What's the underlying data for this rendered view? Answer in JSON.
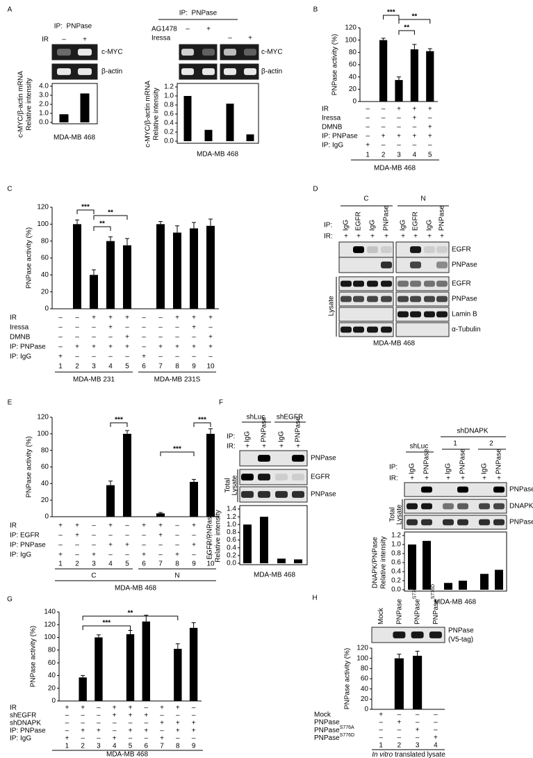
{
  "panels": {
    "a_left": {
      "letter": "A",
      "ip": "IP:  PNPase",
      "conditions": [
        {
          "label": "IR",
          "signs": [
            "–",
            "+"
          ]
        }
      ],
      "blots": [
        "c-MYC",
        "β-actin"
      ],
      "ylabel": [
        "c-MYC/β-actin mRNA",
        "Relative intensity"
      ],
      "ylim": [
        0,
        4
      ],
      "yticks": [
        {
          "value": 0,
          "label": "0.0"
        },
        {
          "value": 1,
          "label": "1.0"
        },
        {
          "value": 2,
          "label": "2.0"
        },
        {
          "value": 3,
          "label": "3.0"
        },
        {
          "value": 4,
          "label": "4.0"
        }
      ],
      "values": [
        0.9,
        3.2
      ],
      "cell_line": "MDA-MB 468"
    },
    "a_right": {
      "ip": "IP:  PNPase",
      "conditions": [
        {
          "label": "AG1478",
          "signs": [
            "–",
            "+",
            null,
            null
          ]
        },
        {
          "label": "Iressa",
          "signs": [
            null,
            null,
            "–",
            "+"
          ]
        }
      ],
      "blots": [
        "c-MYC",
        "β-actin"
      ],
      "ylabel": [
        "c-MYC/β-actin mRNA",
        "Relative intensity"
      ],
      "ylim": [
        0,
        1.2
      ],
      "yticks": [
        {
          "value": 0,
          "label": "0.0"
        },
        {
          "value": 0.2,
          "label": "0.2"
        },
        {
          "value": 0.4,
          "label": "0.4"
        },
        {
          "value": 0.6,
          "label": "0.6"
        },
        {
          "value": 0.8,
          "label": "0.8"
        },
        {
          "value": 1,
          "label": "1.0"
        },
        {
          "value": 1.2,
          "label": "1.2"
        }
      ],
      "values": [
        1.0,
        0.25,
        0.83,
        0.15
      ],
      "cell_line": "MDA-MB 468"
    },
    "b": {
      "letter": "B",
      "ylabel": "PNPase activity (%)",
      "ylim": [
        0,
        120
      ],
      "yticks": [
        0,
        20,
        40,
        60,
        80,
        100,
        120
      ],
      "values": [
        0,
        100,
        35,
        85,
        82
      ],
      "errors": [
        0,
        3,
        5,
        8,
        4
      ],
      "significance": [
        "***",
        "**",
        "**"
      ],
      "conditions": [
        {
          "label": "IR",
          "signs": [
            "–",
            "–",
            "+",
            "+",
            "+"
          ]
        },
        {
          "label": "Iressa",
          "signs": [
            "–",
            "–",
            "–",
            "+",
            "–"
          ]
        },
        {
          "label": "DMNB",
          "signs": [
            "–",
            "–",
            "–",
            "–",
            "+"
          ]
        },
        {
          "label": "IP: PNPase",
          "signs": [
            "–",
            "+",
            "+",
            "+",
            "+"
          ]
        },
        {
          "label": "IP: IgG",
          "signs": [
            "+",
            "–",
            "–",
            "–",
            "–"
          ]
        }
      ],
      "lanes": [
        1,
        2,
        3,
        4,
        5
      ],
      "cell_line": "MDA-MB 468"
    },
    "c": {
      "letter": "C",
      "ylabel": "PNPase activity (%)",
      "ylim": [
        0,
        120
      ],
      "yticks": [
        0,
        20,
        40,
        60,
        80,
        100,
        120
      ],
      "values": [
        0,
        100,
        40,
        80,
        75,
        0,
        100,
        90,
        95,
        98
      ],
      "errors": [
        0,
        5,
        6,
        5,
        8,
        0,
        3,
        8,
        7,
        8
      ],
      "significance": [
        "***",
        "**",
        "**"
      ],
      "conditions": [
        {
          "label": "IR",
          "signs": [
            "–",
            "–",
            "+",
            "+",
            "+",
            "–",
            "–",
            "+",
            "+",
            "+"
          ]
        },
        {
          "label": "Iressa",
          "signs": [
            "–",
            "–",
            "–",
            "+",
            "–",
            "–",
            "–",
            "–",
            "+",
            "–"
          ]
        },
        {
          "label": "DMNB",
          "signs": [
            "–",
            "–",
            "–",
            "–",
            "+",
            "–",
            "–",
            "–",
            "–",
            "+"
          ]
        },
        {
          "label": "IP: PNPase",
          "signs": [
            "–",
            "+",
            "+",
            "+",
            "+",
            "–",
            "+",
            "+",
            "+",
            "+"
          ]
        },
        {
          "label": "IP: IgG",
          "signs": [
            "+",
            "–",
            "–",
            "–",
            "–",
            "+",
            "–",
            "–",
            "–",
            "–"
          ]
        }
      ],
      "lanes": [
        1,
        2,
        3,
        4,
        5,
        6,
        7,
        8,
        9,
        10
      ],
      "groups": [
        "MDA-MB 231",
        "MDA-MB 231S"
      ]
    },
    "d": {
      "letter": "D",
      "groups": [
        "C",
        "N"
      ],
      "ip_label": "IP:",
      "ir_label": "IR:",
      "ip": [
        "IgG",
        "EGFR",
        "IgG",
        "PNPase",
        "IgG",
        "EGFR",
        "IgG",
        "PNPase"
      ],
      "ir": [
        "+",
        "+",
        "+",
        "+",
        "+",
        "+",
        "+",
        "+"
      ],
      "blots": [
        "EGFR",
        "PNPase",
        "EGFR",
        "PNPase",
        "Lamin B",
        "α-Tubulin"
      ],
      "lysate": "Lysate",
      "cell_line": "MDA-MB 468"
    },
    "e": {
      "letter": "E",
      "ylabel": "PNPase activity (%)",
      "ylim": [
        0,
        120
      ],
      "yticks": [
        0,
        20,
        40,
        60,
        80,
        100,
        120
      ],
      "values": [
        0,
        0,
        0,
        38,
        100,
        0,
        4,
        0,
        42,
        100
      ],
      "errors": [
        0,
        0,
        0,
        5,
        4,
        0,
        1,
        0,
        3,
        6
      ],
      "significance": [
        "***",
        "***",
        "***"
      ],
      "conditions": [
        {
          "label": "IR",
          "signs": [
            "+",
            "+",
            "–",
            "+",
            "–",
            "+",
            "+",
            "–",
            "+",
            "–"
          ]
        },
        {
          "label": "IP: EGFR",
          "signs": [
            "–",
            "+",
            "–",
            "–",
            "–",
            "–",
            "+",
            "–",
            "–",
            "–"
          ]
        },
        {
          "label": "IP: PNPase",
          "signs": [
            "–",
            "–",
            "–",
            "+",
            "+",
            "–",
            "–",
            "–",
            "+",
            "+"
          ]
        },
        {
          "label": "IP: IgG",
          "signs": [
            "+",
            "–",
            "+",
            "–",
            "–",
            "+",
            "–",
            "+",
            "–",
            "–"
          ]
        }
      ],
      "lanes": [
        1,
        2,
        3,
        4,
        5,
        6,
        7,
        8,
        9,
        10
      ],
      "groups": [
        "C",
        "N"
      ],
      "cell_line": "MDA-MB 468"
    },
    "f_left": {
      "letter": "F",
      "sh": [
        "shLuc",
        "shEGFR"
      ],
      "ip_label": "IP:",
      "ir_label": "IR:",
      "ip": [
        "IgG",
        "PNPase",
        "IgG",
        "PNPase"
      ],
      "ir": [
        "+",
        "+",
        "+",
        "+"
      ],
      "blots": [
        "PNPase",
        "EGFR",
        "PNPase"
      ],
      "lysate": [
        "Total",
        "Lysate"
      ],
      "ylabel": [
        "EGFR/PNPase",
        "Relative intensity"
      ],
      "ylim": [
        0,
        1.4
      ],
      "yticks": [
        {
          "value": 0,
          "label": "0.0"
        },
        {
          "value": 0.2,
          "label": "0.2"
        },
        {
          "value": 0.4,
          "label": "0.4"
        },
        {
          "value": 0.6,
          "label": "0.6"
        },
        {
          "value": 0.8,
          "label": "0.8"
        },
        {
          "value": 1,
          "label": "1.0"
        },
        {
          "value": 1.2,
          "label": "1.2"
        },
        {
          "value": 1.4,
          "label": "1.4"
        }
      ],
      "values": [
        1.0,
        1.2,
        0.12,
        0.1
      ],
      "cell_line": "MDA-MB 468"
    },
    "f_right": {
      "sh": [
        "shLuc",
        "shDNAPK"
      ],
      "clones": [
        "1",
        "2"
      ],
      "ip_label": "IP:",
      "ir_label": "IR:",
      "ip": [
        "IgG",
        "PNPase",
        "IgG",
        "PNPase",
        "IgG",
        "PNPase"
      ],
      "ir": [
        "+",
        "+",
        "+",
        "+",
        "+",
        "+"
      ],
      "blots": [
        "PNPase",
        "DNAPK",
        "PNPase"
      ],
      "lysate": [
        "Total",
        "Lysate"
      ],
      "ylabel": [
        "DNAPK/PNPase",
        "Relative intensity"
      ],
      "ylim": [
        0,
        1.2
      ],
      "yticks": [
        {
          "value": 0,
          "label": "0.0"
        },
        {
          "value": 0.2,
          "label": "0.2"
        },
        {
          "value": 0.4,
          "label": "0.4"
        },
        {
          "value": 0.6,
          "label": "0.6"
        },
        {
          "value": 0.8,
          "label": "0.8"
        },
        {
          "value": 1,
          "label": "1.0"
        },
        {
          "value": 1.2,
          "label": "1.2"
        }
      ],
      "values": [
        1.0,
        1.08,
        0.15,
        0.2,
        0.35,
        0.44
      ],
      "cell_line": "MDA-MB 468"
    },
    "g": {
      "letter": "G",
      "ylabel": "PNPase activity (%)",
      "ylim": [
        0,
        140
      ],
      "yticks": [
        0,
        20,
        40,
        60,
        80,
        100,
        120,
        140
      ],
      "values": [
        0,
        37,
        100,
        0,
        105,
        125,
        0,
        82,
        115
      ],
      "errors": [
        0,
        3,
        4,
        0,
        6,
        10,
        0,
        8,
        8
      ],
      "significance": [
        "**",
        "***"
      ],
      "conditions": [
        {
          "label": "IR",
          "signs": [
            "+",
            "+",
            "–",
            "+",
            "+",
            "–",
            "+",
            "+",
            "–"
          ]
        },
        {
          "label": "shEGFR",
          "signs": [
            "–",
            "–",
            "–",
            "+",
            "+",
            "+",
            "–",
            "–",
            "–"
          ]
        },
        {
          "label": "shDNAPK",
          "signs": [
            "–",
            "–",
            "–",
            "–",
            "–",
            "–",
            "+",
            "+",
            "+"
          ]
        },
        {
          "label": "IP: PNPase",
          "signs": [
            "–",
            "+",
            "+",
            "–",
            "+",
            "+",
            "–",
            "+",
            "+"
          ]
        },
        {
          "label": "IP: IgG",
          "signs": [
            "+",
            "–",
            "–",
            "+",
            "–",
            "–",
            "+",
            "–",
            "–"
          ]
        }
      ],
      "lanes": [
        1,
        2,
        3,
        4,
        5,
        6,
        7,
        8,
        9
      ],
      "cell_line": "MDA-MB 468"
    },
    "h": {
      "letter": "H",
      "headers": [
        {
          "text": "Mock"
        },
        {
          "text": "PNPase"
        },
        {
          "text": "PNPase",
          "sup": "S776A"
        },
        {
          "text": "PNPase",
          "sup": "S776D"
        }
      ],
      "blot": [
        "PNPase",
        "(V5-tag)"
      ],
      "ylabel": "PNPase activity (%)",
      "ylim": [
        0,
        120
      ],
      "yticks": [
        0,
        20,
        40,
        60,
        80,
        100,
        120
      ],
      "values": [
        0,
        100,
        105,
        0
      ],
      "errors": [
        0,
        8,
        9,
        0
      ],
      "conditions": [
        {
          "label": "Mock",
          "signs": [
            "+",
            "–",
            "–",
            "–"
          ]
        },
        {
          "label": "PNPase",
          "signs": [
            "–",
            "+",
            "–",
            "–"
          ]
        },
        {
          "label": "PNPase",
          "sup": "S776A",
          "signs": [
            "–",
            "–",
            "+",
            "–"
          ]
        },
        {
          "label": "PNPase",
          "sup": "S776D",
          "signs": [
            "–",
            "–",
            "–",
            "+"
          ]
        }
      ],
      "lanes": [
        1,
        2,
        3,
        4
      ],
      "footer": {
        "italic": "In vitro",
        "rest": " translated lysate"
      }
    }
  }
}
